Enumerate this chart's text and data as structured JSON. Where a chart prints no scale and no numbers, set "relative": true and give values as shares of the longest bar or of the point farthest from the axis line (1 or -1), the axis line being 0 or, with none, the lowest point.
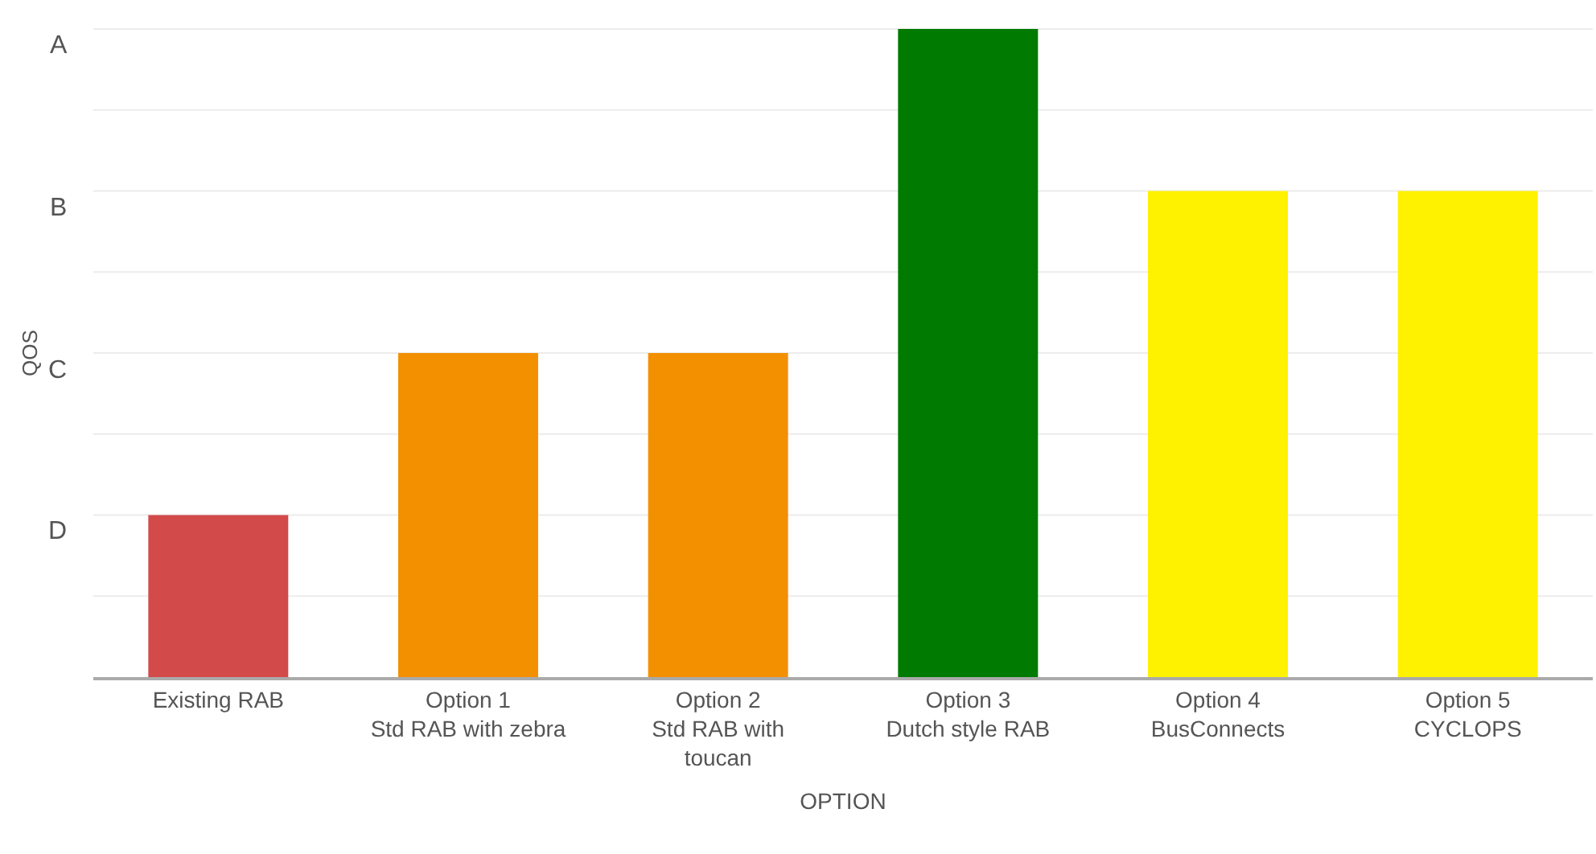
{
  "chart_data": {
    "type": "bar",
    "xlabel": "OPTION",
    "ylabel": "QOS",
    "relative": true,
    "categories": [
      "Existing RAB",
      "Option 1\nStd RAB with zebra",
      "Option 2\nStd RAB with\ntoucan",
      "Option 3\nDutch style RAB",
      "Option 4\nBusConnects",
      "Option 5\nCYCLOPS"
    ],
    "values": [
      0.25,
      0.5,
      0.5,
      1,
      0.75,
      0.75
    ],
    "colors": [
      "#d34a4a",
      "#f39000",
      "#f39000",
      "#007a00",
      "#fff200",
      "#fff200"
    ],
    "annotations": [
      "A",
      "B",
      "C",
      "D"
    ],
    "grid": "y"
  }
}
